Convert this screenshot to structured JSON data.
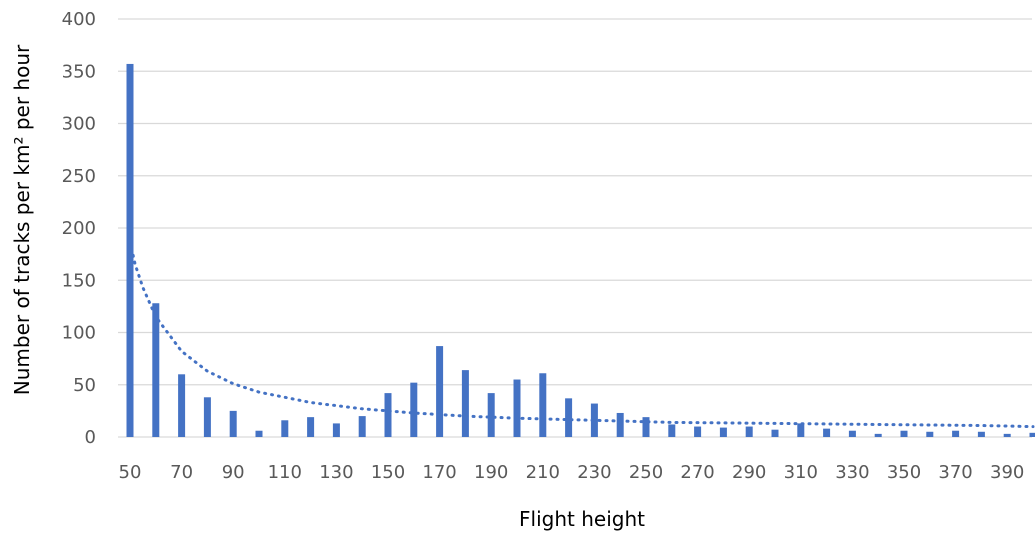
{
  "chart_data": {
    "type": "bar",
    "xlabel": "Flight height",
    "ylabel": "Number of tracks per km² per hour",
    "ylim": [
      0,
      400
    ],
    "y_ticks": [
      0,
      50,
      100,
      150,
      200,
      250,
      300,
      350,
      400
    ],
    "x_tick_labels": [
      50,
      70,
      90,
      110,
      130,
      150,
      170,
      190,
      210,
      230,
      250,
      270,
      290,
      310,
      330,
      350,
      370,
      390
    ],
    "categories": [
      50,
      60,
      70,
      80,
      90,
      100,
      110,
      120,
      130,
      140,
      150,
      160,
      170,
      180,
      190,
      200,
      210,
      220,
      230,
      240,
      250,
      260,
      270,
      280,
      290,
      300,
      310,
      320,
      330,
      340,
      350,
      360,
      370,
      380,
      390,
      400
    ],
    "values": [
      357,
      128,
      60,
      38,
      25,
      6,
      16,
      19,
      13,
      20,
      42,
      52,
      87,
      64,
      42,
      55,
      61,
      37,
      32,
      23,
      19,
      12,
      10,
      9,
      10,
      7,
      13,
      8,
      6,
      3,
      6,
      5,
      6,
      5,
      3,
      4
    ],
    "trendline": {
      "style": "dotted",
      "kind": "power",
      "x": [
        50,
        52,
        55,
        60,
        70,
        80,
        90,
        100,
        120,
        140,
        160,
        180,
        200,
        230,
        260,
        300,
        340,
        380,
        400
      ],
      "y": [
        187,
        165,
        143,
        115,
        82,
        63,
        51,
        43,
        33,
        27,
        23,
        20,
        18,
        16,
        14,
        13,
        12,
        11,
        10
      ]
    },
    "grid": "horizontal",
    "legend": "none",
    "colors": {
      "bar": "#4472c4",
      "trendline": "#4472c4",
      "grid": "#d9d9d9",
      "tick_text": "#595959",
      "title_text": "#000000"
    }
  }
}
